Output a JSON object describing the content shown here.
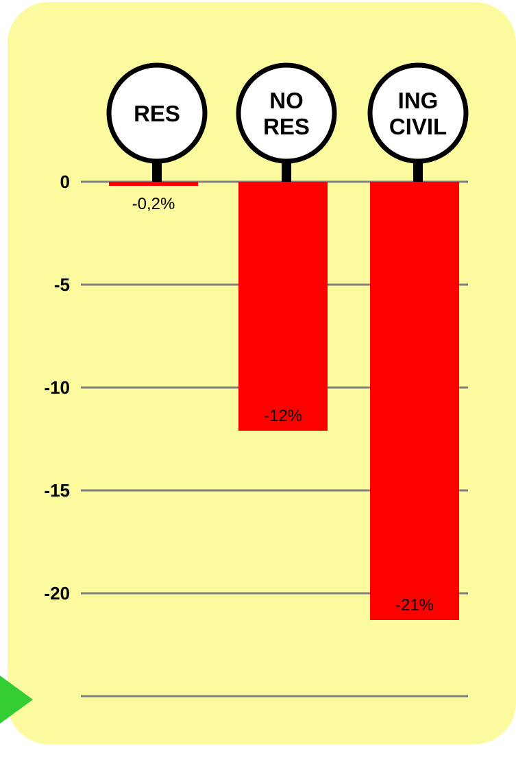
{
  "chart_data": {
    "type": "bar",
    "categories": [
      {
        "lines": [
          "RES"
        ]
      },
      {
        "lines": [
          "NO",
          "RES"
        ]
      },
      {
        "lines": [
          "ING",
          "CIVIL"
        ]
      }
    ],
    "values": [
      -0.2,
      -12.1,
      -21.3
    ],
    "data_labels": [
      "-0,2%",
      "-12%",
      "-21%"
    ],
    "y_ticks": [
      {
        "value": 0,
        "label": "0"
      },
      {
        "value": -5,
        "label": "-5"
      },
      {
        "value": -10,
        "label": "-10"
      },
      {
        "value": -15,
        "label": "-15"
      },
      {
        "value": -20,
        "label": "-20"
      },
      {
        "value": -25,
        "label": ""
      }
    ],
    "ylim": [
      -25,
      0
    ],
    "grid": true,
    "title": "",
    "xlabel": "",
    "ylabel": ""
  },
  "colors": {
    "panel_background": "#fcfa9f",
    "bar": "#ff0000",
    "gridline": "#808080",
    "marker_circle_fill": "#ffffff",
    "marker_outline": "#000000",
    "nav_arrow": "#33cc33"
  },
  "icons": {
    "nav_arrow": "play-arrow-icon"
  }
}
